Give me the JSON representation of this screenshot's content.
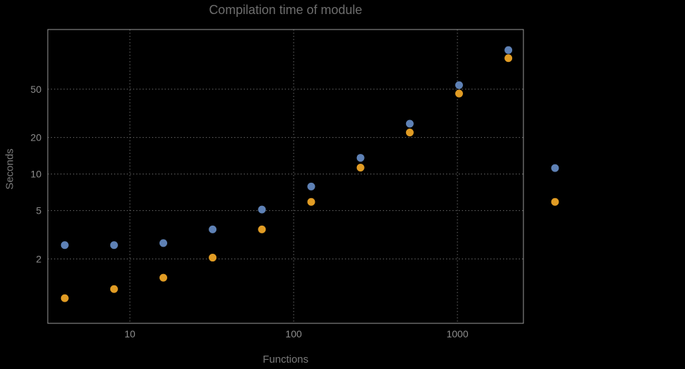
{
  "title": "Compilation time of module",
  "axes": {
    "x_label": "Functions",
    "y_label": "Seconds"
  },
  "colors": {
    "background": "#000000",
    "frame": "#9a9a9a",
    "grid": "#6a6a6a",
    "title_text": "#6e6e6e",
    "tick_text": "#8d8d8d",
    "series1": "#5e81b5",
    "series2": "#e19c24"
  },
  "chart_data": {
    "type": "scatter",
    "title": "Compilation time of module",
    "xlabel": "Functions",
    "ylabel": "Seconds",
    "x_scale": "log",
    "y_scale": "log",
    "grid": "dotted",
    "x_ticks": [
      10,
      100,
      1000
    ],
    "y_ticks": [
      2,
      5,
      10,
      20,
      50
    ],
    "x_range": [
      3.15,
      2530
    ],
    "y_range": [
      0.59,
      155
    ],
    "x": [
      4,
      8,
      16,
      32,
      64,
      128,
      256,
      512,
      1024,
      2048
    ],
    "series": [
      {
        "name": "series-1-blue",
        "color": "#5e81b5",
        "values": [
          2.6,
          2.6,
          2.7,
          3.5,
          5.1,
          7.9,
          13.6,
          26,
          54,
          105
        ]
      },
      {
        "name": "series-2-orange",
        "color": "#e19c24",
        "values": [
          0.95,
          1.13,
          1.4,
          2.05,
          3.5,
          5.9,
          11.3,
          22,
          46,
          90
        ]
      }
    ],
    "legend_markers": [
      {
        "color": "#5e81b5",
        "y": 11.2
      },
      {
        "color": "#e19c24",
        "y": 5.9
      }
    ],
    "legend_marker_x_px": 790
  }
}
